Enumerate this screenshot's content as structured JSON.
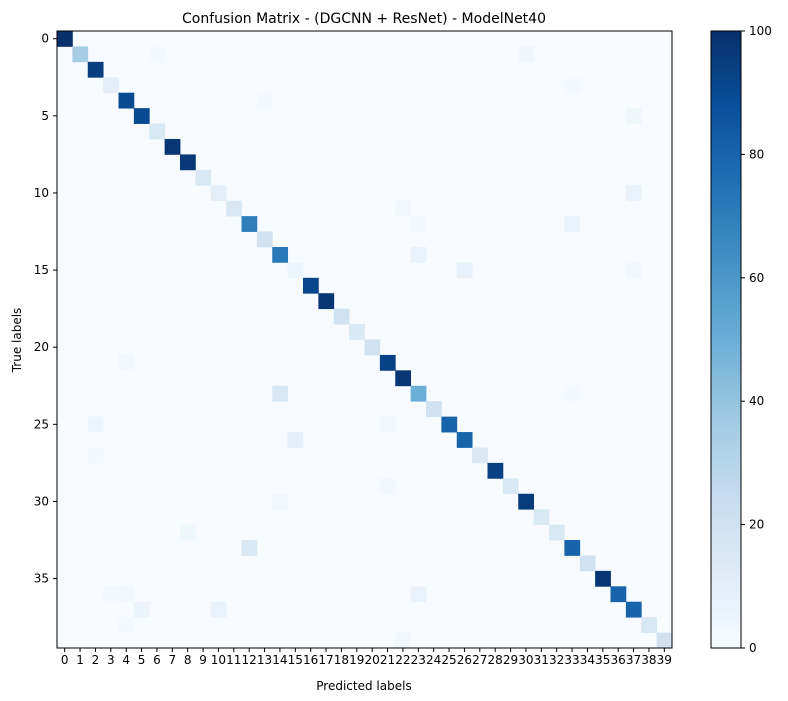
{
  "chart_data": {
    "type": "heatmap",
    "title": "Confusion Matrix - (DGCNN + ResNet) - ModelNet40",
    "xlabel": "Predicted labels",
    "ylabel": "True labels",
    "x_categories": [
      "0",
      "1",
      "2",
      "3",
      "4",
      "5",
      "6",
      "7",
      "8",
      "9",
      "10",
      "11",
      "12",
      "13",
      "14",
      "15",
      "16",
      "17",
      "18",
      "19",
      "20",
      "21",
      "22",
      "23",
      "24",
      "25",
      "26",
      "27",
      "28",
      "29",
      "30",
      "31",
      "32",
      "33",
      "34",
      "35",
      "36",
      "37",
      "38",
      "39"
    ],
    "y_ticks": [
      "0",
      "5",
      "10",
      "15",
      "20",
      "25",
      "30",
      "35"
    ],
    "colorbar": {
      "min": 0,
      "max": 100,
      "ticks": [
        "0",
        "20",
        "40",
        "60",
        "80",
        "100"
      ],
      "colormap": "Blues"
    },
    "diagonal": [
      100,
      35,
      95,
      10,
      90,
      90,
      15,
      98,
      97,
      15,
      10,
      15,
      70,
      20,
      72,
      5,
      92,
      98,
      20,
      15,
      20,
      93,
      98,
      50,
      20,
      80,
      80,
      15,
      94,
      15,
      96,
      15,
      15,
      80,
      20,
      98,
      80,
      80,
      15,
      20
    ],
    "off_diagonal": [
      {
        "true": 1,
        "pred": 30,
        "value": 4
      },
      {
        "true": 1,
        "pred": 6,
        "value": 2
      },
      {
        "true": 3,
        "pred": 33,
        "value": 2
      },
      {
        "true": 4,
        "pred": 13,
        "value": 2
      },
      {
        "true": 5,
        "pred": 37,
        "value": 4
      },
      {
        "true": 10,
        "pred": 37,
        "value": 7
      },
      {
        "true": 11,
        "pred": 22,
        "value": 3
      },
      {
        "true": 12,
        "pred": 33,
        "value": 7
      },
      {
        "true": 12,
        "pred": 23,
        "value": 2
      },
      {
        "true": 14,
        "pred": 23,
        "value": 7
      },
      {
        "true": 15,
        "pred": 26,
        "value": 8
      },
      {
        "true": 15,
        "pred": 37,
        "value": 3
      },
      {
        "true": 21,
        "pred": 4,
        "value": 3
      },
      {
        "true": 23,
        "pred": 14,
        "value": 16
      },
      {
        "true": 23,
        "pred": 33,
        "value": 2
      },
      {
        "true": 25,
        "pred": 2,
        "value": 5
      },
      {
        "true": 25,
        "pred": 21,
        "value": 3
      },
      {
        "true": 26,
        "pred": 15,
        "value": 10
      },
      {
        "true": 27,
        "pred": 2,
        "value": 2
      },
      {
        "true": 29,
        "pred": 21,
        "value": 3
      },
      {
        "true": 30,
        "pred": 14,
        "value": 3
      },
      {
        "true": 32,
        "pred": 8,
        "value": 4
      },
      {
        "true": 33,
        "pred": 12,
        "value": 15
      },
      {
        "true": 36,
        "pred": 23,
        "value": 7
      },
      {
        "true": 36,
        "pred": 3,
        "value": 2
      },
      {
        "true": 36,
        "pred": 4,
        "value": 3
      },
      {
        "true": 37,
        "pred": 5,
        "value": 6
      },
      {
        "true": 37,
        "pred": 10,
        "value": 7
      },
      {
        "true": 38,
        "pred": 4,
        "value": 2
      },
      {
        "true": 39,
        "pred": 22,
        "value": 3
      }
    ]
  }
}
